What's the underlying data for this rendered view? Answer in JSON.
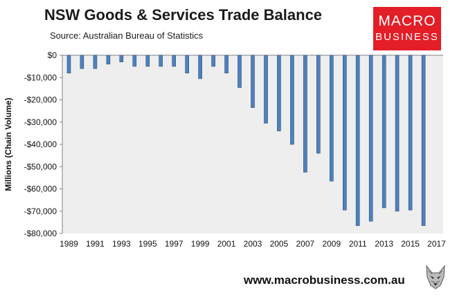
{
  "title": "NSW Goods & Services Trade Balance",
  "source": "Source:  Australian Bureau of Statistics",
  "logo": {
    "line1": "MACRO",
    "line2": "BUSINESS",
    "color": "#e31e26"
  },
  "website": "www.macrobusiness.com.au",
  "colors": {
    "bar": "#4f81bd",
    "bar_edge": "#2c4e7a",
    "plot_bg": "#eeeeee"
  },
  "chart_data": {
    "type": "bar",
    "ylabel": "Millions (Chain Volume)",
    "ylim": [
      -80000,
      0
    ],
    "yticks": [
      0,
      -10000,
      -20000,
      -30000,
      -40000,
      -50000,
      -60000,
      -70000,
      -80000
    ],
    "ytick_labels": [
      "$0",
      "-$10,000",
      "-$20,000",
      "-$30,000",
      "-$40,000",
      "-$50,000",
      "-$60,000",
      "-$70,000",
      "-$80,000"
    ],
    "xtick_labels": [
      "1989",
      "1991",
      "1993",
      "1995",
      "1997",
      "1999",
      "2001",
      "2003",
      "2005",
      "2007",
      "2009",
      "2011",
      "2013",
      "2015",
      "2017"
    ],
    "categories": [
      "1989",
      "1990",
      "1991",
      "1992",
      "1993",
      "1994",
      "1995",
      "1996",
      "1997",
      "1998",
      "1999",
      "2000",
      "2001",
      "2002",
      "2003",
      "2004",
      "2005",
      "2006",
      "2007",
      "2008",
      "2009",
      "2010",
      "2011",
      "2012",
      "2013",
      "2014",
      "2015",
      "2016",
      "2017"
    ],
    "values": [
      -8000,
      -6000,
      -6000,
      -4000,
      -3000,
      -5000,
      -5000,
      -5000,
      -5000,
      -8000,
      -10500,
      -5000,
      -8000,
      -14500,
      -23500,
      -30500,
      -34000,
      -40000,
      -52500,
      -44000,
      -56500,
      -69500,
      -76500,
      -74500,
      -68500,
      -70000,
      -69500,
      -76500,
      0
    ],
    "grid": false,
    "legend": "none"
  }
}
